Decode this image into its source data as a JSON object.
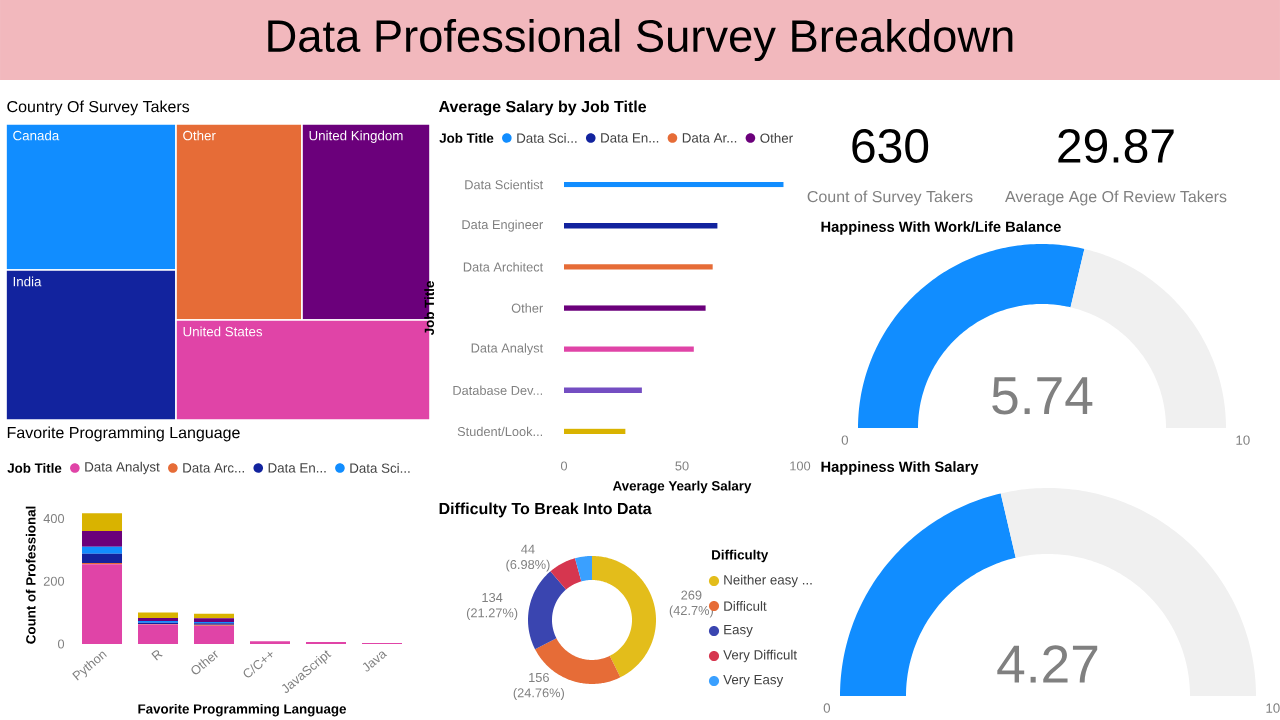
{
  "chart_data": [
    {
      "type": "other",
      "title": "Data Professional Survey Breakdown"
    },
    {
      "type": "other",
      "title": "Country Of Survey Takers",
      "categories": [
        "Canada",
        "India",
        "Other",
        "United Kingdom",
        "United States"
      ],
      "colors": [
        "#118dff",
        "#12239e",
        "#e66c37",
        "#6b007b",
        "#e044a7"
      ]
    },
    {
      "type": "bar",
      "orientation": "horizontal",
      "title": "Average Salary by Job Title",
      "legend_title": "Job Title",
      "legend": "top left",
      "xlabel": "Average Yearly Salary",
      "ylabel": "Job Title",
      "categories": [
        "Data Scientist",
        "Data Engineer",
        "Data Architect",
        "Other",
        "Data Analyst",
        "Database Dev...",
        "Student/Look..."
      ],
      "series": [
        {
          "name": "Data Sci...",
          "color": "#118dff",
          "values": [
            93,
            null,
            null,
            null,
            null,
            null,
            null
          ]
        },
        {
          "name": "Data En...",
          "color": "#12239e",
          "values": [
            null,
            65,
            null,
            null,
            null,
            null,
            null
          ]
        },
        {
          "name": "Data Ar...",
          "color": "#e66c37",
          "values": [
            null,
            null,
            63,
            null,
            null,
            null,
            null
          ]
        },
        {
          "name": "Other",
          "color": "#6b007b",
          "values": [
            null,
            null,
            null,
            60,
            null,
            null,
            null
          ]
        },
        {
          "color": "#e044a7",
          "values": [
            null,
            null,
            null,
            null,
            55,
            null,
            null
          ]
        },
        {
          "color": "#744ec2",
          "values": [
            null,
            null,
            null,
            null,
            null,
            33,
            null
          ]
        },
        {
          "color": "#d9b300",
          "values": [
            null,
            null,
            null,
            null,
            null,
            null,
            26
          ]
        }
      ],
      "xlim": [
        0,
        100
      ],
      "xticks": [
        0,
        50,
        100
      ]
    },
    {
      "type": "bar",
      "stacked": true,
      "title": "Favorite Programming Language",
      "legend_title": "Job Title",
      "legend": "top left",
      "xlabel": "Favorite Programming Language",
      "ylabel": "Count of Professional",
      "categories": [
        "Python",
        "R",
        "Other",
        "C/C++",
        "JavaScript",
        "Java"
      ],
      "series": [
        {
          "name": "Data Analyst",
          "color": "#e044a7",
          "values": [
            254,
            62,
            58,
            9,
            6,
            3
          ]
        },
        {
          "name": "Data Arc...",
          "color": "#e66c37",
          "values": [
            4,
            2,
            3,
            0,
            0,
            0
          ]
        },
        {
          "name": "Data En...",
          "color": "#12239e",
          "values": [
            30,
            4,
            5,
            0,
            0,
            0
          ]
        },
        {
          "name": "Data Sci...",
          "color": "#118dff",
          "values": [
            22,
            5,
            4,
            0,
            0,
            0
          ]
        },
        {
          "color": "#6b007b",
          "values": [
            50,
            10,
            12,
            0,
            0,
            0
          ]
        },
        {
          "color": "#d9b300",
          "values": [
            57,
            17,
            14,
            0,
            0,
            0
          ]
        }
      ],
      "ylim": [
        0,
        440
      ],
      "yticks": [
        0,
        200,
        400
      ]
    },
    {
      "type": "donut",
      "title": "Difficulty To Break Into Data",
      "legend_title": "Difficulty",
      "legend": "right",
      "categories": [
        "Neither easy ...",
        "Difficult",
        "Easy",
        "Very Difficult",
        "Very Easy"
      ],
      "values": [
        269,
        156,
        134,
        44,
        27
      ],
      "colors": [
        "#e3bd1b",
        "#e66c37",
        "#3a45b0",
        "#d6364f",
        "#3aa0ff"
      ],
      "value_labels": [
        "269 (42.7%)",
        "156 (24.76%)",
        "134 (21.27%)",
        "44 (6.98%)",
        null
      ]
    },
    {
      "type": "other",
      "annotations": [
        "630",
        "Count of Survey Takers"
      ]
    },
    {
      "type": "other",
      "annotations": [
        "29.87",
        "Average Age Of Review Takers"
      ]
    },
    {
      "type": "donut",
      "title": "Happiness With Work/Life Balance",
      "categories": [
        null,
        null
      ],
      "values": [
        57.4,
        42.6
      ],
      "colors": [
        "#118dff",
        "#f0f0f0"
      ],
      "annotations": [
        "0",
        "10",
        "5.74"
      ]
    },
    {
      "type": "donut",
      "title": "Happiness With Salary",
      "categories": [
        null,
        null
      ],
      "values": [
        42.7,
        57.3
      ],
      "colors": [
        "#118dff",
        "#f0f0f0"
      ],
      "annotations": [
        "0",
        "10",
        "4.27"
      ]
    }
  ]
}
